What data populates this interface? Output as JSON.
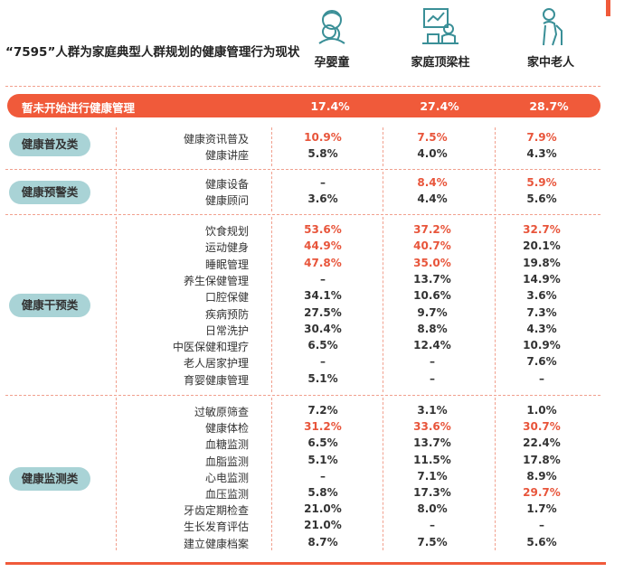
{
  "title": "“7595”人群为家庭典型人群规划的健康管理行为现状",
  "columns": [
    {
      "label": "孕婴童",
      "icon": "mother-baby-icon"
    },
    {
      "label": "家庭顶梁柱",
      "icon": "office-worker-icon"
    },
    {
      "label": "家中老人",
      "icon": "elderly-person-icon"
    }
  ],
  "banner": {
    "label": "暂未开始进行健康管理",
    "values": [
      "17.4%",
      "27.4%",
      "28.7%"
    ]
  },
  "colors": {
    "accent": "#f05a3a",
    "highlight": "#e8553b",
    "pill": "#a9d3d6",
    "divider": "#f1a08e"
  },
  "sections": [
    {
      "name": "健康普及类",
      "rows": [
        {
          "label": "健康资讯普及",
          "values": [
            "10.9%",
            "7.5%",
            "7.9%"
          ],
          "highlight": [
            true,
            true,
            true
          ]
        },
        {
          "label": "健康讲座",
          "values": [
            "5.8%",
            "4.0%",
            "4.3%"
          ],
          "highlight": [
            false,
            false,
            false
          ]
        }
      ]
    },
    {
      "name": "健康预警类",
      "rows": [
        {
          "label": "健康设备",
          "values": [
            "–",
            "8.4%",
            "5.9%"
          ],
          "highlight": [
            false,
            true,
            true
          ]
        },
        {
          "label": "健康顾问",
          "values": [
            "3.6%",
            "4.4%",
            "5.6%"
          ],
          "highlight": [
            false,
            false,
            false
          ]
        }
      ]
    },
    {
      "name": "健康干预类",
      "rows": [
        {
          "label": "饮食规划",
          "values": [
            "53.6%",
            "37.2%",
            "32.7%"
          ],
          "highlight": [
            true,
            true,
            true
          ]
        },
        {
          "label": "运动健身",
          "values": [
            "44.9%",
            "40.7%",
            "20.1%"
          ],
          "highlight": [
            true,
            true,
            false
          ]
        },
        {
          "label": "睡眠管理",
          "values": [
            "47.8%",
            "35.0%",
            "19.8%"
          ],
          "highlight": [
            true,
            true,
            false
          ]
        },
        {
          "label": "养生保健管理",
          "values": [
            "–",
            "13.7%",
            "14.9%"
          ],
          "highlight": [
            false,
            false,
            false
          ]
        },
        {
          "label": "口腔保健",
          "values": [
            "34.1%",
            "10.6%",
            "3.6%"
          ],
          "highlight": [
            false,
            false,
            false
          ]
        },
        {
          "label": "疾病预防",
          "values": [
            "27.5%",
            "9.7%",
            "7.3%"
          ],
          "highlight": [
            false,
            false,
            false
          ]
        },
        {
          "label": "日常洗护",
          "values": [
            "30.4%",
            "8.8%",
            "4.3%"
          ],
          "highlight": [
            false,
            false,
            false
          ]
        },
        {
          "label": "中医保健和理疗",
          "values": [
            "6.5%",
            "12.4%",
            "10.9%"
          ],
          "highlight": [
            false,
            false,
            false
          ]
        },
        {
          "label": "老人居家护理",
          "values": [
            "–",
            "–",
            "7.6%"
          ],
          "highlight": [
            false,
            false,
            false
          ]
        },
        {
          "label": "育婴健康管理",
          "values": [
            "5.1%",
            "–",
            "–"
          ],
          "highlight": [
            false,
            false,
            false
          ]
        }
      ]
    },
    {
      "name": "健康监测类",
      "rows": [
        {
          "label": "过敏原筛查",
          "values": [
            "7.2%",
            "3.1%",
            "1.0%"
          ],
          "highlight": [
            false,
            false,
            false
          ]
        },
        {
          "label": "健康体检",
          "values": [
            "31.2%",
            "33.6%",
            "30.7%"
          ],
          "highlight": [
            true,
            true,
            true
          ]
        },
        {
          "label": "血糖监测",
          "values": [
            "6.5%",
            "13.7%",
            "22.4%"
          ],
          "highlight": [
            false,
            false,
            false
          ]
        },
        {
          "label": "血脂监测",
          "values": [
            "5.1%",
            "11.5%",
            "17.8%"
          ],
          "highlight": [
            false,
            false,
            false
          ]
        },
        {
          "label": "心电监测",
          "values": [
            "–",
            "7.1%",
            "8.9%"
          ],
          "highlight": [
            false,
            false,
            false
          ]
        },
        {
          "label": "血压监测",
          "values": [
            "5.8%",
            "17.3%",
            "29.7%"
          ],
          "highlight": [
            false,
            false,
            true
          ]
        },
        {
          "label": "牙齿定期检查",
          "values": [
            "21.0%",
            "8.0%",
            "1.7%"
          ],
          "highlight": [
            false,
            false,
            false
          ]
        },
        {
          "label": "生长发育评估",
          "values": [
            "21.0%",
            "–",
            "–"
          ],
          "highlight": [
            false,
            false,
            false
          ]
        },
        {
          "label": "建立健康档案",
          "values": [
            "8.7%",
            "7.5%",
            "5.6%"
          ],
          "highlight": [
            false,
            false,
            false
          ]
        }
      ]
    }
  ]
}
